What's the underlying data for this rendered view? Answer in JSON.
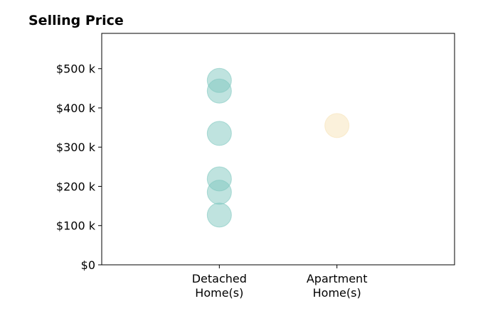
{
  "chart_data": {
    "type": "scatter",
    "title": "Selling Price",
    "categories": [
      "Detached\nHome(s)",
      "Apartment\nHome(s)"
    ],
    "yticks": [
      {
        "value": 0,
        "label": "$0"
      },
      {
        "value": 100000,
        "label": "$100 k"
      },
      {
        "value": 200000,
        "label": "$200 k"
      },
      {
        "value": 300000,
        "label": "$300 k"
      },
      {
        "value": 400000,
        "label": "$400 k"
      },
      {
        "value": 500000,
        "label": "$500 k"
      }
    ],
    "ylim": [
      0,
      590000
    ],
    "xlim": [
      -1,
      2
    ],
    "grid": false,
    "series": [
      {
        "category_index": 0,
        "color": "#7fc8c0",
        "values": [
          470000,
          443000,
          335000,
          219000,
          185000,
          127000
        ]
      },
      {
        "category_index": 1,
        "color": "#f7e3b8",
        "values": [
          355000
        ]
      }
    ]
  }
}
